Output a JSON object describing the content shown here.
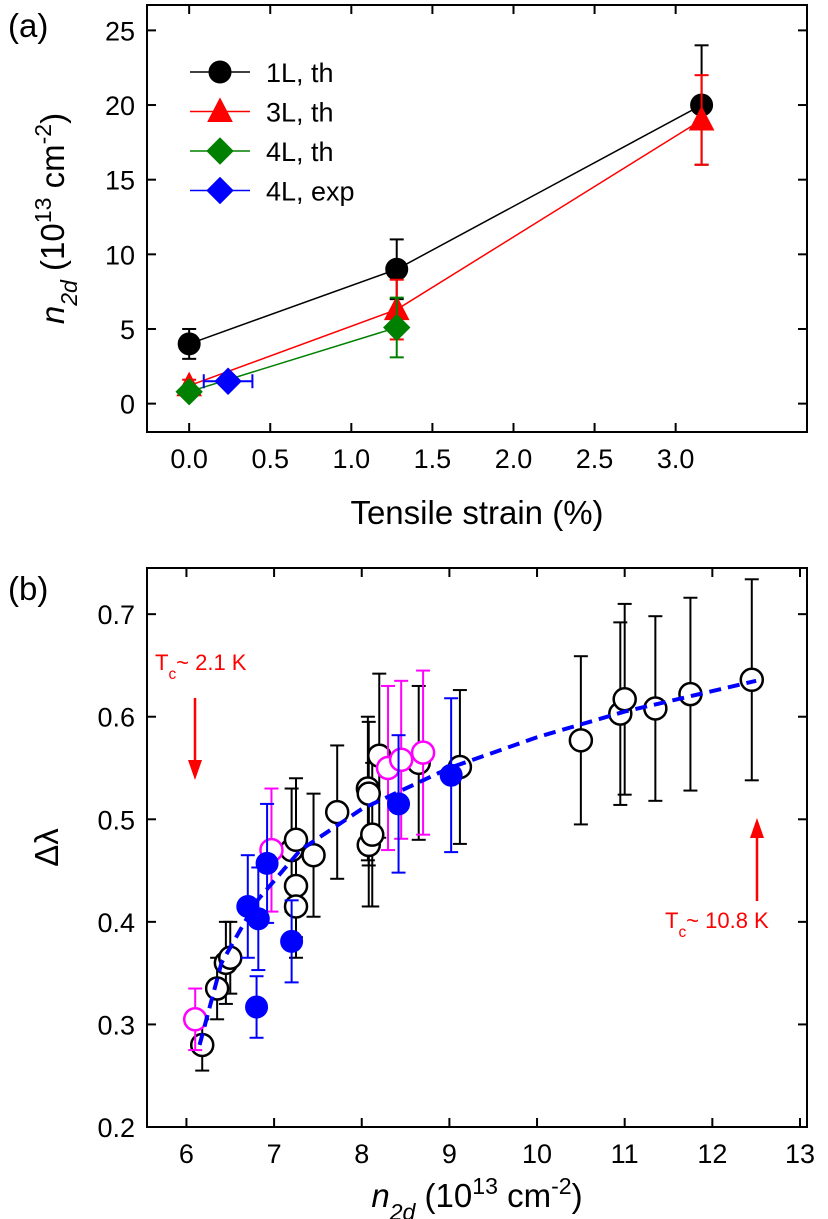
{
  "chart_data": [
    {
      "type": "line",
      "panel_label": "(a)",
      "xlabel": "Tensile strain (%)",
      "ylabel_parts": [
        {
          "text": "n",
          "italic": true
        },
        {
          "text": "2d",
          "sub": true,
          "italic": true
        },
        {
          "text": " (10"
        },
        {
          "text": "13",
          "sup": true
        },
        {
          "text": " cm"
        },
        {
          "text": "-2",
          "sup": true
        },
        {
          "text": ")"
        }
      ],
      "xlim": [
        -0.26,
        3.81
      ],
      "ylim": [
        -1.9,
        26.7
      ],
      "xticks": [
        {
          "value": 0,
          "label": "0.0"
        },
        0.5,
        {
          "value": 1,
          "label": "1.0"
        },
        1.5,
        {
          "value": 2,
          "label": "2.0"
        },
        2.5,
        {
          "value": 3,
          "label": "3.0"
        }
      ],
      "yticks": [
        0,
        5,
        10,
        15,
        20,
        25
      ],
      "legend": "upper-left",
      "series": [
        {
          "name": "1L, th",
          "color": "#000000",
          "marker": "circle",
          "filled": true,
          "line": "solid",
          "x": [
            0,
            1.28,
            3.16
          ],
          "values": [
            4,
            9,
            20
          ],
          "errors": [
            1,
            2,
            4
          ]
        },
        {
          "name": "3L, th",
          "color": "#ff0000",
          "marker": "triangle",
          "filled": true,
          "line": "solid",
          "x": [
            0,
            1.28,
            3.16
          ],
          "values": [
            1.2,
            6.3,
            19
          ],
          "errors": [
            0.4,
            2,
            3
          ]
        },
        {
          "name": "4L, th",
          "color": "#008000",
          "marker": "diamond",
          "filled": true,
          "line": "solid",
          "x": [
            0,
            1.28
          ],
          "values": [
            0.8,
            5.1
          ],
          "errors": [
            0.3,
            2
          ]
        },
        {
          "name": "4L, exp",
          "color": "#0000ff",
          "marker": "diamond",
          "filled": true,
          "line": "solid",
          "x": [
            0.24
          ],
          "values": [
            1.5
          ],
          "xerrors": [
            0.15
          ]
        }
      ]
    },
    {
      "type": "scatter",
      "panel_label": "(b)",
      "xlabel_parts": [
        {
          "text": "n",
          "italic": true
        },
        {
          "text": "2d",
          "sub": true,
          "italic": true
        },
        {
          "text": " (10"
        },
        {
          "text": "13",
          "sup": true
        },
        {
          "text": " cm"
        },
        {
          "text": "-2",
          "sup": true
        },
        {
          "text": ")"
        }
      ],
      "ylabel": "Δλ",
      "xlim": [
        5.55,
        13.08
      ],
      "ylim": [
        0.2,
        0.745
      ],
      "xticks": [
        6,
        7,
        8,
        9,
        10,
        11,
        12,
        13
      ],
      "yticks": [
        0.2,
        0.3,
        0.4,
        0.5,
        0.6,
        0.7
      ],
      "annotations": [
        [
          {
            "text": "T"
          },
          {
            "text": "c",
            "sub": true
          },
          {
            "text": "~ 2.1 K"
          }
        ],
        [
          {
            "text": "T"
          },
          {
            "text": "c",
            "sub": true
          },
          {
            "text": "~ 10.8 K"
          }
        ]
      ],
      "annotation_color": "#ff0000",
      "series": [
        {
          "color": "#000000",
          "marker": "circle",
          "filled": false,
          "x": [
            6.18,
            6.35,
            6.45,
            6.5,
            7.2,
            7.25,
            7.25,
            7.25,
            7.45,
            7.72,
            8.07,
            8.08,
            8.08,
            8.12,
            8.2,
            8.65,
            9.12,
            10.5,
            10.95,
            11.0,
            11.35,
            11.75,
            12.45
          ],
          "values": [
            0.28,
            0.335,
            0.36,
            0.365,
            0.47,
            0.48,
            0.435,
            0.415,
            0.465,
            0.507,
            0.53,
            0.525,
            0.475,
            0.485,
            0.562,
            0.555,
            0.551,
            0.577,
            0.603,
            0.617,
            0.608,
            0.622,
            0.636
          ],
          "errors": [
            0.025,
            0.03,
            0.04,
            0.035,
            0.06,
            0.06,
            0.05,
            0.05,
            0.06,
            0.065,
            0.07,
            0.07,
            0.06,
            0.07,
            0.08,
            0.075,
            0.075,
            0.082,
            0.089,
            0.093,
            0.09,
            0.094,
            0.098
          ]
        },
        {
          "color": "#ff00ff",
          "marker": "circle",
          "filled": false,
          "x": [
            6.1,
            6.97,
            8.3,
            8.45,
            8.7
          ],
          "values": [
            0.305,
            0.47,
            0.55,
            0.558,
            0.565
          ],
          "errors": [
            0.03,
            0.06,
            0.08,
            0.077,
            0.08
          ]
        },
        {
          "color": "#0000ff",
          "marker": "circle",
          "filled": true,
          "x": [
            6.7,
            6.8,
            6.82,
            6.92,
            7.2,
            8.42,
            9.02
          ],
          "values": [
            0.415,
            0.317,
            0.403,
            0.457,
            0.381,
            0.515,
            0.543
          ],
          "errors": [
            0.05,
            0.03,
            0.05,
            0.058,
            0.04,
            0.067,
            0.075
          ]
        },
        {
          "color": "#0000ff",
          "line": "dashed",
          "x": [
            6.15,
            6.4,
            6.8,
            7.3,
            8,
            9,
            10,
            11,
            12,
            12.5
          ],
          "values": [
            0.28,
            0.36,
            0.42,
            0.47,
            0.51,
            0.55,
            0.58,
            0.605,
            0.625,
            0.635
          ]
        }
      ]
    }
  ]
}
